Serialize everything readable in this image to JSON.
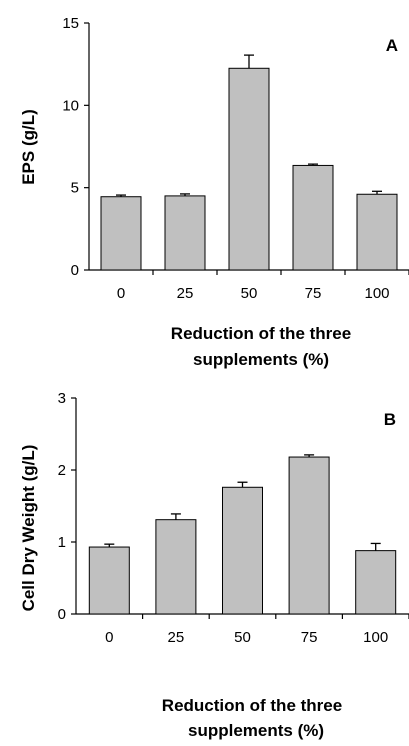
{
  "chart_data": [
    {
      "type": "bar",
      "panel_label": "A",
      "categories": [
        "0",
        "25",
        "50",
        "75",
        "100"
      ],
      "values": [
        4.45,
        4.5,
        12.25,
        6.35,
        4.6
      ],
      "errors": [
        0.1,
        0.12,
        0.8,
        0.08,
        0.18
      ],
      "ylabel": "EPS (g/L)",
      "xlabel_lines": [
        "Reduction of the three",
        "supplements (%)"
      ],
      "ylim": [
        0,
        15
      ],
      "yticks": [
        "0",
        "5",
        "10",
        "15"
      ],
      "grid": false,
      "bar_color": "#c0c0c0"
    },
    {
      "type": "bar",
      "panel_label": "B",
      "categories": [
        "0",
        "25",
        "50",
        "75",
        "100"
      ],
      "values": [
        0.93,
        1.31,
        1.76,
        2.18,
        0.88
      ],
      "errors": [
        0.04,
        0.08,
        0.07,
        0.03,
        0.1
      ],
      "ylabel": "Cell Dry Weight (g/L)",
      "xlabel_lines": [
        "Reduction of the three",
        "supplements (%)"
      ],
      "ylim": [
        0,
        3
      ],
      "yticks": [
        "0",
        "1",
        "2",
        "3"
      ],
      "grid": false,
      "bar_color": "#c0c0c0"
    }
  ]
}
